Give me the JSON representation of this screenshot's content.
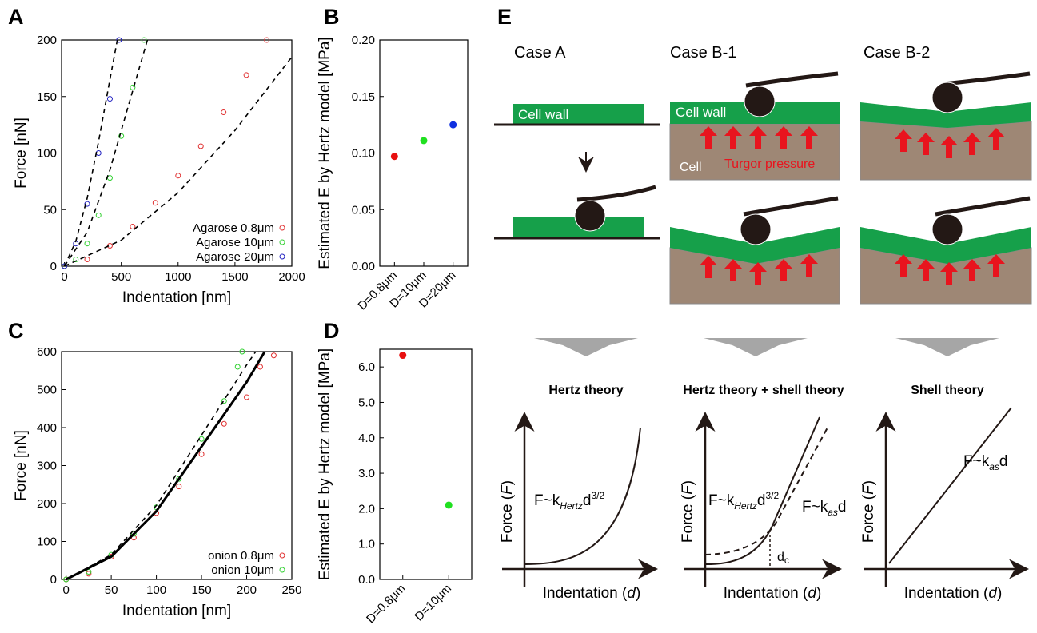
{
  "chart_data": [
    {
      "type": "scatter",
      "panel_label": "A",
      "x_label": "Indentation [nm]",
      "y_label": "Force [nN]",
      "xlim": [
        -25,
        2000
      ],
      "xticks": [
        0,
        500,
        1000,
        1500,
        2000
      ],
      "ylim": [
        0,
        200
      ],
      "yticks": [
        0,
        50,
        100,
        150,
        200
      ],
      "grid": false,
      "legend_position": "lower right",
      "series": [
        {
          "name": "Agarose 0.8μm",
          "color": "#e03030",
          "x": [
            0,
            200,
            400,
            600,
            800,
            1000,
            1200,
            1400,
            1600,
            1780
          ],
          "values": [
            0,
            6,
            18,
            35,
            56,
            80,
            106,
            136,
            169,
            200
          ]
        },
        {
          "name": "Agarose 10μm",
          "color": "#30d030",
          "x": [
            0,
            100,
            200,
            300,
            400,
            500,
            600,
            700
          ],
          "values": [
            0,
            6,
            20,
            45,
            78,
            115,
            158,
            200
          ]
        },
        {
          "name": "Agarose 20μm",
          "color": "#2020c0",
          "x": [
            0,
            100,
            200,
            300,
            400,
            480
          ],
          "values": [
            0,
            20,
            55,
            100,
            148,
            200
          ]
        }
      ],
      "fit_lines": [
        {
          "color": "#000000",
          "x": [
            0,
            500,
            1000,
            1500,
            2000
          ],
          "values": [
            0,
            23,
            65,
            120,
            185
          ]
        },
        {
          "color": "#000000",
          "x": [
            0,
            200,
            400,
            600,
            730
          ],
          "values": [
            0,
            30,
            85,
            155,
            200
          ]
        },
        {
          "color": "#000000",
          "x": [
            0,
            100,
            200,
            300,
            400,
            465
          ],
          "values": [
            0,
            22,
            60,
            110,
            165,
            200
          ]
        }
      ]
    },
    {
      "type": "dot",
      "panel_label": "B",
      "y_label": "Estimated E by Hertz model [MPa]",
      "categories": [
        "D=0.8μm",
        "D=10μm",
        "D=20μm"
      ],
      "values": [
        0.097,
        0.111,
        0.125
      ],
      "colors": [
        "#e81010",
        "#20e020",
        "#1030e0"
      ],
      "ylim": [
        0,
        0.2
      ],
      "yticks": [
        {
          "value": 0,
          "label": "0.00"
        },
        0.05,
        {
          "value": 0.1,
          "label": "0.10"
        },
        0.15,
        {
          "value": 0.2,
          "label": "0.20"
        }
      ],
      "grid": false
    },
    {
      "type": "scatter",
      "panel_label": "C",
      "x_label": "Indentation [nm]",
      "y_label": "Force [nN]",
      "xlim": [
        -5,
        250
      ],
      "xticks": [
        0,
        50,
        100,
        150,
        200,
        250
      ],
      "ylim": [
        0,
        600
      ],
      "yticks": [
        0,
        100,
        200,
        300,
        400,
        500,
        600
      ],
      "grid": false,
      "legend_position": "lower right",
      "series": [
        {
          "name": "onion 0.8μm",
          "color": "#e03030",
          "x": [
            0,
            25,
            50,
            75,
            100,
            125,
            150,
            175,
            200,
            215,
            230
          ],
          "values": [
            0,
            15,
            60,
            110,
            175,
            245,
            330,
            410,
            480,
            560,
            590
          ]
        },
        {
          "name": "onion 10μm",
          "color": "#30d030",
          "x": [
            0,
            25,
            50,
            75,
            100,
            125,
            150,
            175,
            190,
            195
          ],
          "values": [
            0,
            20,
            65,
            120,
            190,
            265,
            370,
            470,
            560,
            600
          ]
        }
      ],
      "fit_lines": [
        {
          "color": "#000000",
          "solid": true,
          "x": [
            0,
            50,
            100,
            150,
            200,
            220
          ],
          "values": [
            0,
            60,
            180,
            350,
            520,
            600
          ]
        },
        {
          "color": "#000000",
          "x": [
            0,
            50,
            100,
            150,
            200,
            210
          ],
          "values": [
            0,
            65,
            195,
            380,
            565,
            600
          ]
        }
      ]
    },
    {
      "type": "dot",
      "panel_label": "D",
      "y_label": "Estimated E by Hertz model [MPa]",
      "categories": [
        "D=0.8μm",
        "D=10μm"
      ],
      "values": [
        6.33,
        2.1
      ],
      "colors": [
        "#e81010",
        "#20e020"
      ],
      "ylim": [
        0,
        6.5
      ],
      "yticks": [
        {
          "value": 0,
          "label": "0.0"
        },
        {
          "value": 1,
          "label": "1.0"
        },
        {
          "value": 2,
          "label": "2.0"
        },
        {
          "value": 3,
          "label": "3.0"
        },
        {
          "value": 4,
          "label": "4.0"
        },
        {
          "value": 5,
          "label": "5.0"
        },
        {
          "value": 6,
          "label": "6.0"
        }
      ],
      "grid": false
    }
  ],
  "panel_e": {
    "label": "E",
    "cases": [
      "Case A",
      "Case B-1",
      "Case B-2"
    ],
    "cell_wall": "Cell wall",
    "cell": "Cell",
    "turgor": "Turgor pressure",
    "theories": [
      "Hertz theory",
      "Hertz theory + shell theory",
      "Shell theory"
    ],
    "force_axis": {
      "open": "Force (",
      "var": "F",
      "close": ")"
    },
    "indentation_axis": {
      "open": "Indentation (",
      "var": "d",
      "close": ")"
    },
    "hertz_formula": {
      "lhs": "F~k",
      "sub": "Hertz",
      "var": "d",
      "sup": "3/2"
    },
    "shell_formula": {
      "lhs": "F~k",
      "sub": "as",
      "var": "d"
    },
    "dc": {
      "var": "d",
      "sub": "c"
    }
  }
}
